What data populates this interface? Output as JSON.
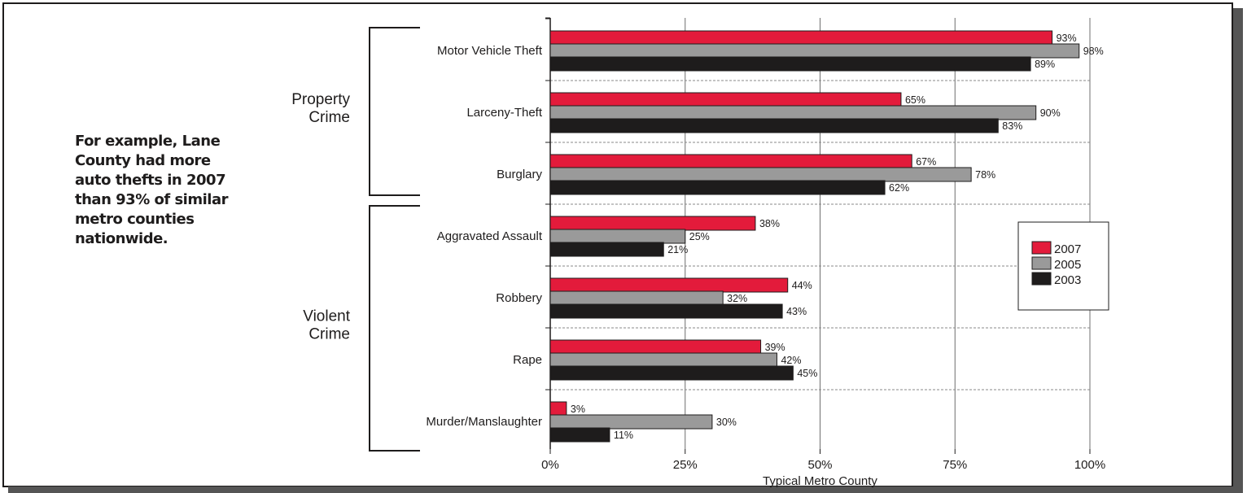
{
  "note": "For example, Lane County had more auto thefts in 2007 than 93% of similar metro counties nationwide.",
  "groups": [
    {
      "label": "Property\nCrime",
      "categories": [
        "Motor Vehicle Theft",
        "Larceny-Theft",
        "Burglary"
      ]
    },
    {
      "label": "Violent\nCrime",
      "categories": [
        "Aggravated Assault",
        "Robbery",
        "Rape",
        "Murder/Manslaughter"
      ]
    }
  ],
  "colors": {
    "2007": "#e31b3b",
    "2005": "#9a9a9a",
    "2003": "#1e1c1c"
  },
  "chart_data": {
    "type": "bar",
    "orientation": "horizontal",
    "categories": [
      "Motor Vehicle Theft",
      "Larceny-Theft",
      "Burglary",
      "Aggravated Assault",
      "Robbery",
      "Rape",
      "Murder/Manslaughter"
    ],
    "series": [
      {
        "name": "2007",
        "values": [
          93,
          65,
          67,
          38,
          44,
          39,
          3
        ]
      },
      {
        "name": "2005",
        "values": [
          98,
          90,
          78,
          25,
          32,
          42,
          30
        ]
      },
      {
        "name": "2003",
        "values": [
          89,
          83,
          62,
          21,
          43,
          45,
          11
        ]
      }
    ],
    "value_suffix": "%",
    "xlim": [
      0,
      100
    ],
    "xticks": [
      "0%",
      "25%",
      "50%",
      "75%",
      "100%"
    ],
    "xlabel": "Typical Metro County",
    "legend_position": "right",
    "grid": true
  }
}
